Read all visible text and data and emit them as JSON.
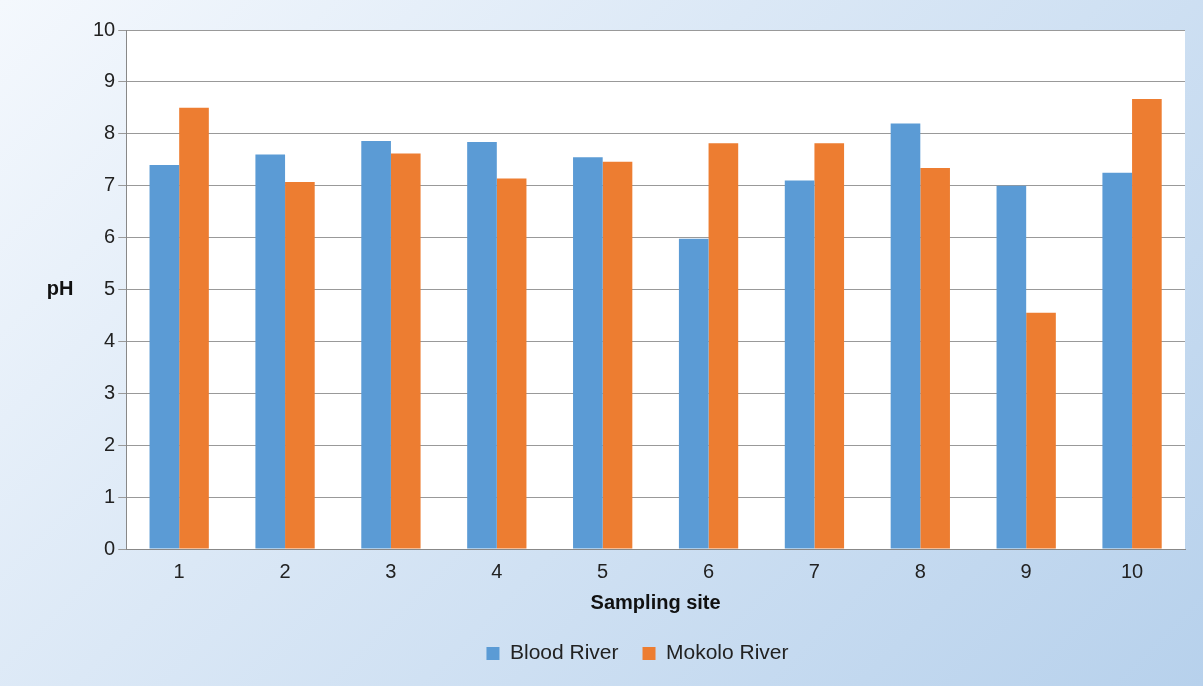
{
  "chart_data": {
    "type": "bar",
    "xlabel": "Sampling site",
    "ylabel": "pH",
    "categories": [
      "1",
      "2",
      "3",
      "4",
      "5",
      "6",
      "7",
      "8",
      "9",
      "10"
    ],
    "series": [
      {
        "name": "Blood River",
        "color": "#5b9bd5",
        "values": [
          7.4,
          7.6,
          7.86,
          7.84,
          7.55,
          5.98,
          7.1,
          8.2,
          7.0,
          7.25
        ]
      },
      {
        "name": "Mokolo River",
        "color": "#ed7d31",
        "values": [
          8.5,
          7.07,
          7.62,
          7.14,
          7.46,
          7.82,
          7.82,
          7.34,
          4.55,
          8.67
        ]
      }
    ],
    "ylim": [
      0,
      10
    ],
    "yticks": [
      0,
      1,
      2,
      3,
      4,
      5,
      6,
      7,
      8,
      9,
      10
    ],
    "grid": "y",
    "legend": "bottom"
  }
}
